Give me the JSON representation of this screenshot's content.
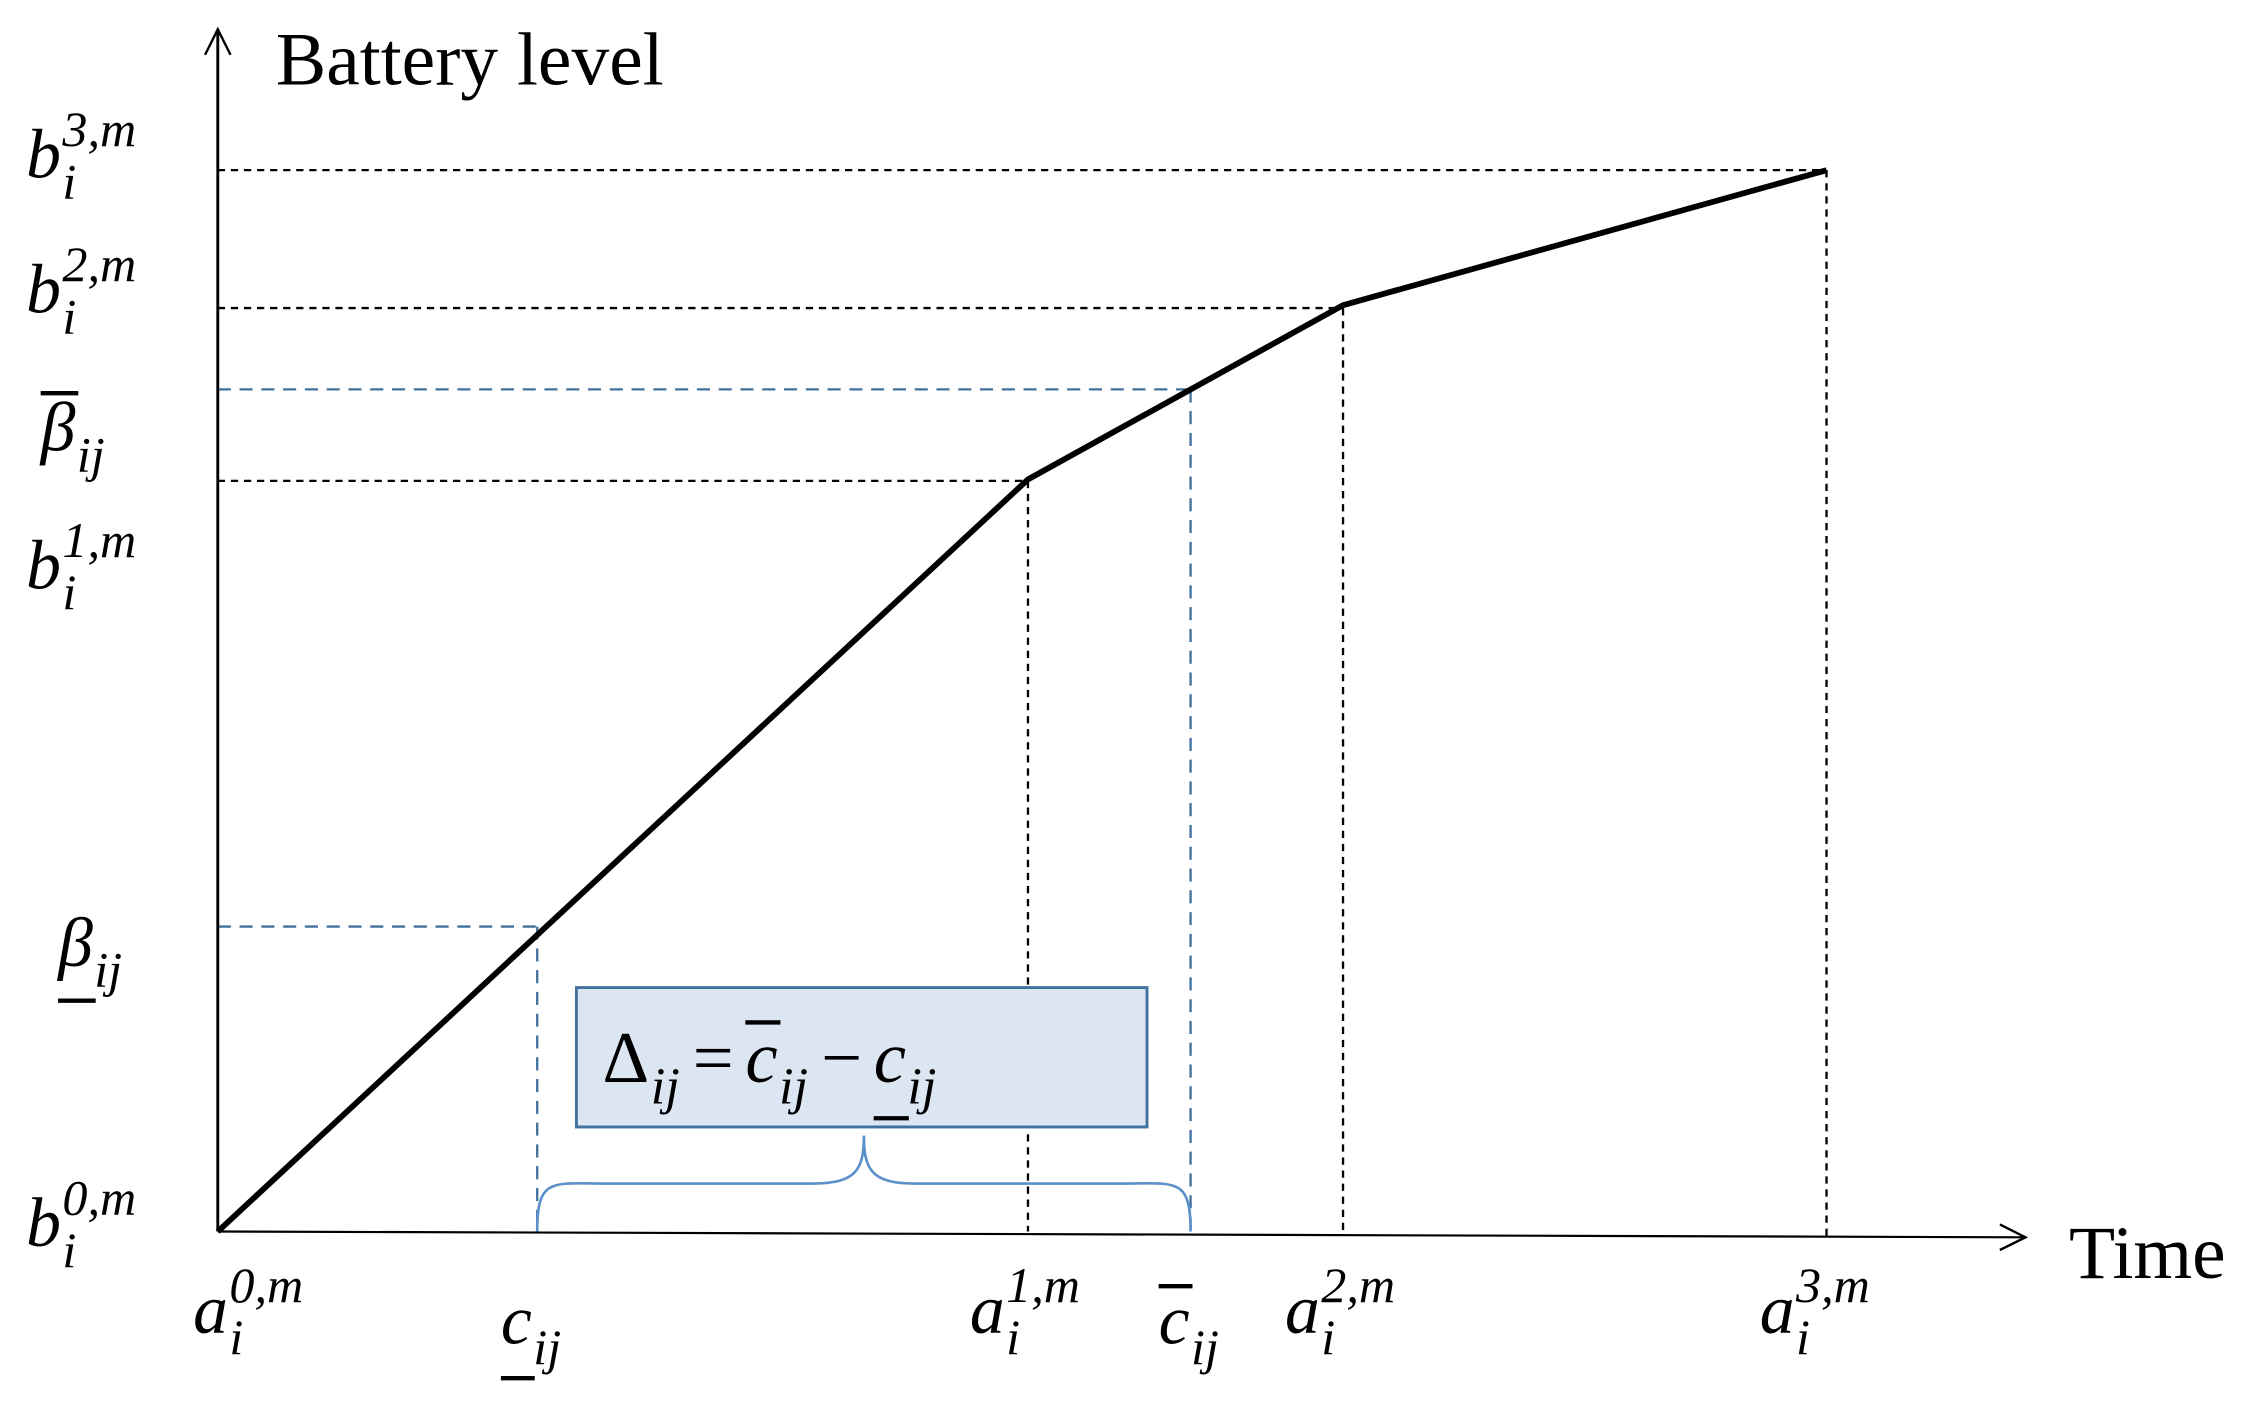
{
  "axes": {
    "y_title": "Battery level",
    "x_title": "Time"
  },
  "y_labels": [
    {
      "base": "b",
      "sub": "i",
      "sup": "3,m"
    },
    {
      "base": "b",
      "sub": "i",
      "sup": "2,m"
    },
    {
      "base": "β",
      "sub": "ij",
      "accent": "overline"
    },
    {
      "base": "b",
      "sub": "i",
      "sup": "1,m"
    },
    {
      "base": "β",
      "sub": "ij",
      "accent": "underline"
    },
    {
      "base": "b",
      "sub": "i",
      "sup": "0,m"
    }
  ],
  "x_labels": [
    {
      "base": "a",
      "sub": "i",
      "sup": "0,m"
    },
    {
      "base": "c",
      "sub": "ij",
      "accent": "underline"
    },
    {
      "base": "a",
      "sub": "i",
      "sup": "1,m"
    },
    {
      "base": "c",
      "sub": "ij",
      "accent": "overline"
    },
    {
      "base": "a",
      "sub": "i",
      "sup": "2,m"
    },
    {
      "base": "a",
      "sub": "i",
      "sup": "3,m"
    }
  ],
  "formula": [
    {
      "base": "Δ",
      "sub": "ij"
    },
    {
      "base": "="
    },
    {
      "base": "c",
      "sub": "ij",
      "accent": "overline"
    },
    {
      "base": "−"
    },
    {
      "base": "c",
      "sub": "ij",
      "accent": "underline"
    }
  ]
}
